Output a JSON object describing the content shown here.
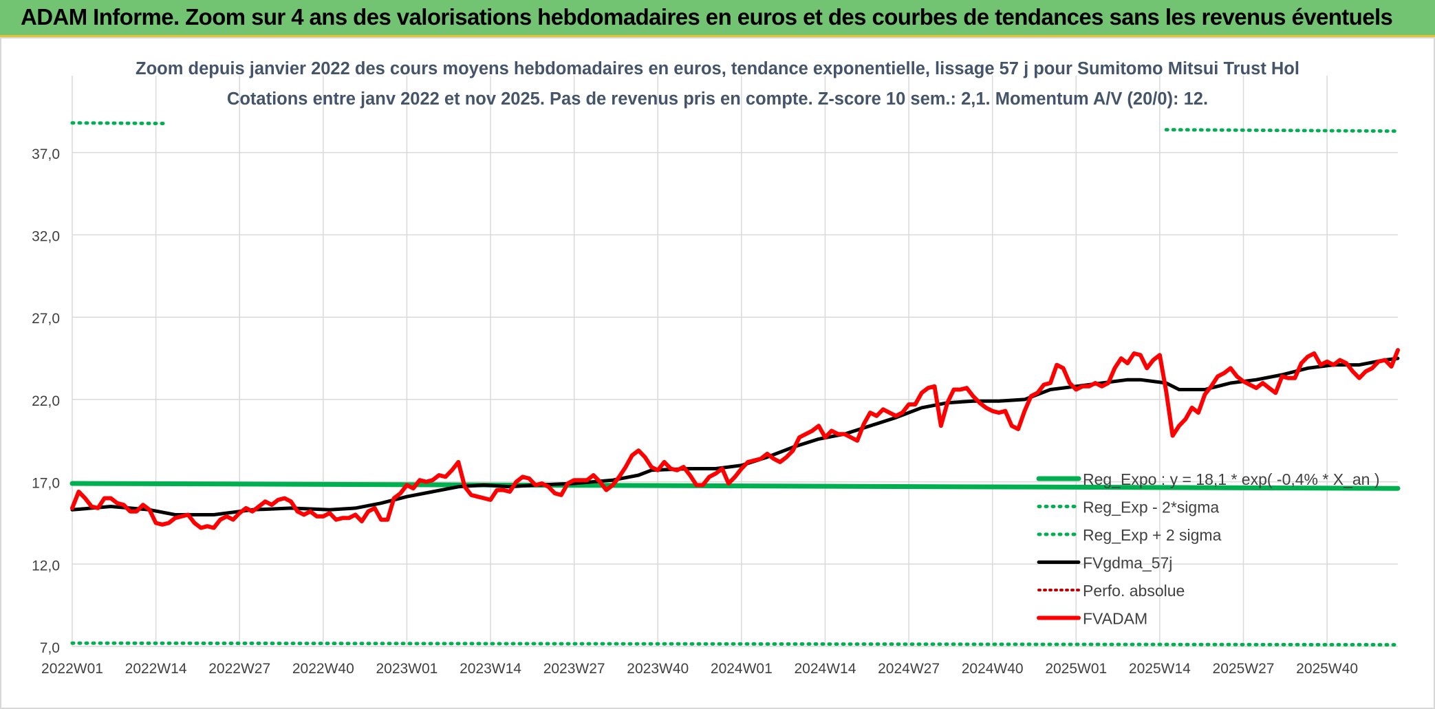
{
  "banner": {
    "title": "ADAM Informe. Zoom sur 4 ans des valorisations hebdomadaires en euros et des courbes de tendances sans les revenus éventuels"
  },
  "colors": {
    "banner_bg": "#72c472",
    "regression": "#00b050",
    "sigma": "#00b050",
    "fvgdma": "#000000",
    "perfo": "#c00000",
    "fvadam": "#ff0000",
    "grid": "#d9d9d9",
    "text": "#404040"
  },
  "chart_data": {
    "type": "line",
    "title_line1": "Zoom depuis janvier 2022 des cours moyens hebdomadaires en euros, tendance exponentielle, lissage 57 j pour Sumitomo Mitsui Trust Hol",
    "title_line2": "Cotations entre janv 2022 et nov 2025. Pas de revenus pris en compte. Z-score 10 sem.: 2,1. Momentum A/V (20/0): 12.",
    "ylim": [
      7.0,
      40.0
    ],
    "yticks": [
      "7,0",
      "12,0",
      "17,0",
      "22,0",
      "27,0",
      "32,0",
      "37,0"
    ],
    "ytick_values": [
      7,
      12,
      17,
      22,
      27,
      32,
      37
    ],
    "x_ticks": [
      "2022W01",
      "2022W14",
      "2022W27",
      "2022W40",
      "2023W01",
      "2023W14",
      "2023W27",
      "2023W40",
      "2024W01",
      "2024W14",
      "2024W27",
      "2024W40",
      "2025W01",
      "2025W14",
      "2025W27",
      "2025W40"
    ],
    "x_tick_weeks": [
      0,
      13,
      26,
      39,
      52,
      65,
      78,
      91,
      104,
      117,
      130,
      143,
      156,
      169,
      182,
      195
    ],
    "n_weeks": 206,
    "series": [
      {
        "name": "Reg_Expo : y = 18,1 * exp( -0,4% *  X_an )",
        "style": "thick-solid",
        "points": [
          [
            0,
            16.9
          ],
          [
            206,
            16.6
          ]
        ]
      },
      {
        "name": "Reg_Exp - 2*sigma",
        "style": "dotted",
        "points": [
          [
            0,
            7.2
          ],
          [
            206,
            7.1
          ]
        ]
      },
      {
        "name": "Reg_Exp + 2 sigma",
        "style": "dotted",
        "points": [
          [
            0,
            38.8
          ],
          [
            206,
            38.3
          ]
        ]
      },
      {
        "name": "FVgdma_57j",
        "style": "solid",
        "points": [
          [
            0,
            15.3
          ],
          [
            6,
            15.5
          ],
          [
            12,
            15.3
          ],
          [
            16,
            15.0
          ],
          [
            22,
            15.0
          ],
          [
            28,
            15.3
          ],
          [
            34,
            15.4
          ],
          [
            40,
            15.3
          ],
          [
            44,
            15.4
          ],
          [
            48,
            15.7
          ],
          [
            52,
            16.1
          ],
          [
            56,
            16.4
          ],
          [
            60,
            16.7
          ],
          [
            64,
            16.8
          ],
          [
            68,
            16.7
          ],
          [
            72,
            16.8
          ],
          [
            78,
            16.9
          ],
          [
            84,
            17.1
          ],
          [
            88,
            17.4
          ],
          [
            90,
            17.7
          ],
          [
            96,
            17.8
          ],
          [
            100,
            17.8
          ],
          [
            104,
            18.0
          ],
          [
            108,
            18.5
          ],
          [
            112,
            19.1
          ],
          [
            116,
            19.6
          ],
          [
            120,
            19.9
          ],
          [
            124,
            20.4
          ],
          [
            128,
            20.9
          ],
          [
            132,
            21.5
          ],
          [
            136,
            21.8
          ],
          [
            140,
            21.9
          ],
          [
            144,
            21.9
          ],
          [
            148,
            22.0
          ],
          [
            152,
            22.6
          ],
          [
            156,
            22.8
          ],
          [
            160,
            23.0
          ],
          [
            164,
            23.2
          ],
          [
            166,
            23.2
          ],
          [
            170,
            23.0
          ],
          [
            172,
            22.6
          ],
          [
            176,
            22.6
          ],
          [
            180,
            23.0
          ],
          [
            184,
            23.2
          ],
          [
            188,
            23.5
          ],
          [
            192,
            23.9
          ],
          [
            196,
            24.1
          ],
          [
            200,
            24.1
          ],
          [
            204,
            24.4
          ],
          [
            206,
            24.5
          ]
        ]
      },
      {
        "name": "Perfo. absolue",
        "style": "dotted",
        "points": []
      },
      {
        "name": "FVADAM",
        "style": "thick-solid",
        "points": [
          [
            0,
            15.4
          ],
          [
            1,
            16.4
          ],
          [
            2,
            16.0
          ],
          [
            3,
            15.5
          ],
          [
            4,
            15.4
          ],
          [
            5,
            16.0
          ],
          [
            6,
            16.0
          ],
          [
            7,
            15.7
          ],
          [
            8,
            15.6
          ],
          [
            9,
            15.2
          ],
          [
            10,
            15.2
          ],
          [
            11,
            15.6
          ],
          [
            12,
            15.3
          ],
          [
            13,
            14.5
          ],
          [
            14,
            14.4
          ],
          [
            15,
            14.5
          ],
          [
            16,
            14.8
          ],
          [
            17,
            14.9
          ],
          [
            18,
            15.0
          ],
          [
            19,
            14.5
          ],
          [
            20,
            14.2
          ],
          [
            21,
            14.3
          ],
          [
            22,
            14.2
          ],
          [
            23,
            14.7
          ],
          [
            24,
            14.9
          ],
          [
            25,
            14.7
          ],
          [
            26,
            15.1
          ],
          [
            27,
            15.4
          ],
          [
            28,
            15.2
          ],
          [
            29,
            15.5
          ],
          [
            30,
            15.8
          ],
          [
            31,
            15.6
          ],
          [
            32,
            15.9
          ],
          [
            33,
            16.0
          ],
          [
            34,
            15.8
          ],
          [
            35,
            15.2
          ],
          [
            36,
            15.0
          ],
          [
            37,
            15.2
          ],
          [
            38,
            14.9
          ],
          [
            39,
            14.9
          ],
          [
            40,
            15.1
          ],
          [
            41,
            14.7
          ],
          [
            42,
            14.8
          ],
          [
            43,
            14.8
          ],
          [
            44,
            15.0
          ],
          [
            45,
            14.6
          ],
          [
            46,
            15.2
          ],
          [
            47,
            15.4
          ],
          [
            48,
            14.7
          ],
          [
            49,
            14.7
          ],
          [
            50,
            16.0
          ],
          [
            51,
            16.3
          ],
          [
            52,
            16.8
          ],
          [
            53,
            16.6
          ],
          [
            54,
            17.1
          ],
          [
            55,
            17.0
          ],
          [
            56,
            17.1
          ],
          [
            57,
            17.4
          ],
          [
            58,
            17.3
          ],
          [
            59,
            17.7
          ],
          [
            60,
            18.2
          ],
          [
            61,
            16.7
          ],
          [
            62,
            16.2
          ],
          [
            63,
            16.1
          ],
          [
            64,
            16.0
          ],
          [
            65,
            15.9
          ],
          [
            66,
            16.5
          ],
          [
            67,
            16.5
          ],
          [
            68,
            16.4
          ],
          [
            69,
            17.0
          ],
          [
            70,
            17.3
          ],
          [
            71,
            17.2
          ],
          [
            72,
            16.8
          ],
          [
            73,
            16.9
          ],
          [
            74,
            16.7
          ],
          [
            75,
            16.3
          ],
          [
            76,
            16.2
          ],
          [
            77,
            16.9
          ],
          [
            78,
            17.1
          ],
          [
            79,
            17.1
          ],
          [
            80,
            17.1
          ],
          [
            81,
            17.4
          ],
          [
            82,
            17.0
          ],
          [
            83,
            16.5
          ],
          [
            84,
            16.8
          ],
          [
            85,
            17.3
          ],
          [
            86,
            17.9
          ],
          [
            87,
            18.6
          ],
          [
            88,
            18.9
          ],
          [
            89,
            18.5
          ],
          [
            90,
            17.9
          ],
          [
            91,
            17.7
          ],
          [
            92,
            18.2
          ],
          [
            93,
            17.8
          ],
          [
            94,
            17.7
          ],
          [
            95,
            17.9
          ],
          [
            96,
            17.4
          ],
          [
            97,
            16.8
          ],
          [
            98,
            16.8
          ],
          [
            99,
            17.3
          ],
          [
            100,
            17.5
          ],
          [
            101,
            17.8
          ],
          [
            102,
            16.9
          ],
          [
            103,
            17.3
          ],
          [
            104,
            17.8
          ],
          [
            105,
            18.2
          ],
          [
            106,
            18.3
          ],
          [
            107,
            18.4
          ],
          [
            108,
            18.7
          ],
          [
            109,
            18.4
          ],
          [
            110,
            18.2
          ],
          [
            111,
            18.5
          ],
          [
            112,
            18.9
          ],
          [
            113,
            19.7
          ],
          [
            114,
            19.9
          ],
          [
            115,
            20.1
          ],
          [
            116,
            20.4
          ],
          [
            117,
            19.7
          ],
          [
            118,
            20.1
          ],
          [
            119,
            19.9
          ],
          [
            120,
            19.9
          ],
          [
            121,
            19.7
          ],
          [
            122,
            19.5
          ],
          [
            123,
            20.5
          ],
          [
            124,
            21.2
          ],
          [
            125,
            21.0
          ],
          [
            126,
            21.4
          ],
          [
            127,
            21.2
          ],
          [
            128,
            21.0
          ],
          [
            129,
            21.2
          ],
          [
            130,
            21.7
          ],
          [
            131,
            21.7
          ],
          [
            132,
            22.4
          ],
          [
            133,
            22.7
          ],
          [
            134,
            22.8
          ],
          [
            135,
            20.4
          ],
          [
            136,
            21.8
          ],
          [
            137,
            22.6
          ],
          [
            138,
            22.6
          ],
          [
            139,
            22.7
          ],
          [
            140,
            22.2
          ],
          [
            141,
            21.8
          ],
          [
            142,
            21.5
          ],
          [
            143,
            21.3
          ],
          [
            144,
            21.2
          ],
          [
            145,
            21.3
          ],
          [
            146,
            20.4
          ],
          [
            147,
            20.2
          ],
          [
            148,
            21.3
          ],
          [
            149,
            22.2
          ],
          [
            150,
            22.4
          ],
          [
            151,
            22.9
          ],
          [
            152,
            23.0
          ],
          [
            153,
            24.1
          ],
          [
            154,
            23.9
          ],
          [
            155,
            23.0
          ],
          [
            156,
            22.6
          ],
          [
            157,
            22.8
          ],
          [
            158,
            22.8
          ],
          [
            159,
            23.0
          ],
          [
            160,
            22.8
          ],
          [
            161,
            23.0
          ],
          [
            162,
            23.9
          ],
          [
            163,
            24.5
          ],
          [
            164,
            24.2
          ],
          [
            165,
            24.8
          ],
          [
            166,
            24.7
          ],
          [
            167,
            23.9
          ],
          [
            168,
            24.4
          ],
          [
            169,
            24.7
          ],
          [
            170,
            22.5
          ],
          [
            171,
            19.8
          ],
          [
            172,
            20.4
          ],
          [
            173,
            20.8
          ],
          [
            174,
            21.5
          ],
          [
            175,
            21.2
          ],
          [
            176,
            22.3
          ],
          [
            177,
            22.8
          ],
          [
            178,
            23.4
          ],
          [
            179,
            23.6
          ],
          [
            180,
            23.9
          ],
          [
            181,
            23.4
          ],
          [
            182,
            23.1
          ],
          [
            183,
            22.9
          ],
          [
            184,
            22.7
          ],
          [
            185,
            23.0
          ],
          [
            186,
            22.7
          ],
          [
            187,
            22.4
          ],
          [
            188,
            23.4
          ],
          [
            189,
            23.3
          ],
          [
            190,
            23.3
          ],
          [
            191,
            24.2
          ],
          [
            192,
            24.6
          ],
          [
            193,
            24.8
          ],
          [
            194,
            24.1
          ],
          [
            195,
            24.3
          ],
          [
            196,
            24.1
          ],
          [
            197,
            24.4
          ],
          [
            198,
            24.2
          ],
          [
            199,
            23.7
          ],
          [
            200,
            23.3
          ],
          [
            201,
            23.7
          ],
          [
            202,
            23.9
          ],
          [
            203,
            24.3
          ],
          [
            204,
            24.4
          ],
          [
            205,
            24.0
          ],
          [
            206,
            25.0
          ]
        ]
      }
    ]
  }
}
